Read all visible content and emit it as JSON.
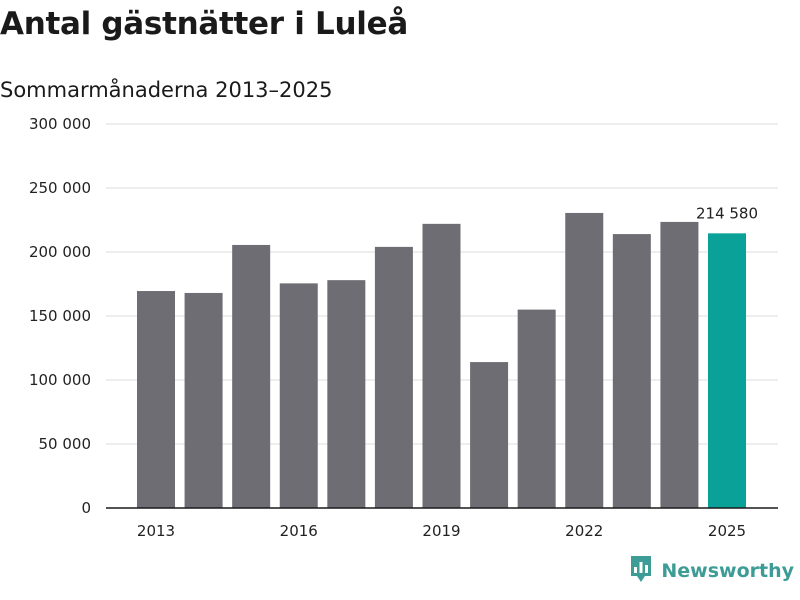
{
  "title": "Antal gästnätter i Luleå",
  "subtitle": "Sommarmånaderna 2013–2025",
  "branding": {
    "name": "Newsworthy",
    "color": "#3d9c96",
    "icon": "bar-chart-speech-bubble-icon"
  },
  "colors": {
    "bar": "#6e6d73",
    "highlight": "#0aa198",
    "grid": "#dedede",
    "axis": "#1a1a1a"
  },
  "chart_data": {
    "type": "bar",
    "categories": [
      "2013",
      "2014",
      "2015",
      "2016",
      "2017",
      "2018",
      "2019",
      "2020",
      "2021",
      "2022",
      "2023",
      "2024",
      "2025"
    ],
    "values": [
      169500,
      168000,
      205500,
      175500,
      178000,
      204000,
      222000,
      114000,
      155000,
      230500,
      214000,
      223500,
      214580
    ],
    "highlight_index": 12,
    "data_labels": [
      {
        "index": 12,
        "text": "214 580"
      }
    ],
    "x_tick_labels": [
      "2013",
      "2016",
      "2019",
      "2022",
      "2025"
    ],
    "y_tick_values": [
      0,
      50000,
      100000,
      150000,
      200000,
      250000,
      300000
    ],
    "y_tick_labels": [
      "0",
      "50 000",
      "100 000",
      "150 000",
      "200 000",
      "250 000",
      "300 000"
    ],
    "ylim": [
      0,
      300000
    ],
    "xlabel": "",
    "ylabel": "",
    "grid": true,
    "legend": "none"
  }
}
